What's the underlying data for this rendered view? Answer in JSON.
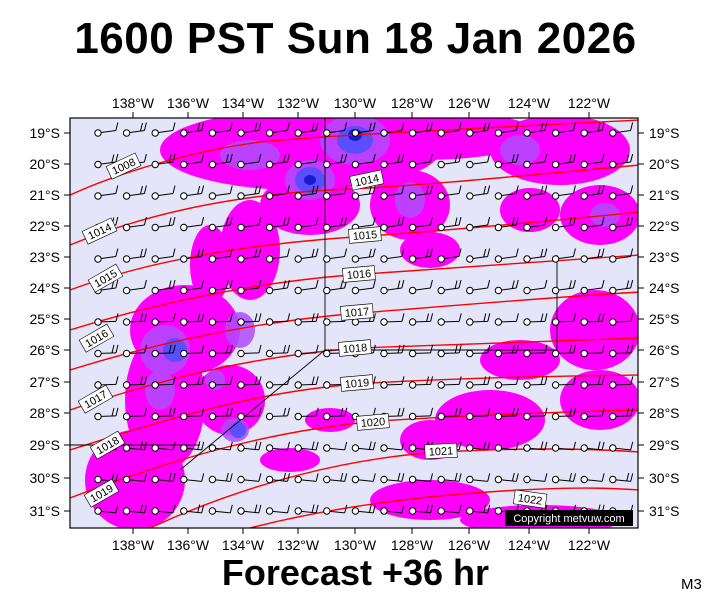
{
  "title": "1600 PST Sun 18 Jan 2026",
  "footer": "Forecast +36 hr",
  "model_tag": "M3",
  "copyright": "Copyright metvuw.com",
  "colors": {
    "background": "#e5e5fa",
    "rain_light": "#ff00ff",
    "rain_mid": "#b04cff",
    "rain_heavy": "#5050ff",
    "rain_core": "#1a1ad0",
    "isobar": "#ff0000"
  },
  "map": {
    "lon_labels": [
      "138°W",
      "136°W",
      "134°W",
      "132°W",
      "130°W",
      "128°W",
      "126°W",
      "124°W",
      "122°W"
    ],
    "lat_labels": [
      "19°S",
      "20°S",
      "21°S",
      "22°S",
      "23°S",
      "24°S",
      "25°S",
      "26°S",
      "27°S",
      "28°S",
      "29°S",
      "30°S",
      "31°S"
    ],
    "isobars": [
      {
        "label": "1008"
      },
      {
        "label": "1014"
      },
      {
        "label": "1014"
      },
      {
        "label": "1015"
      },
      {
        "label": "1015"
      },
      {
        "label": "1016"
      },
      {
        "label": "1016"
      },
      {
        "label": "1017"
      },
      {
        "label": "1017"
      },
      {
        "label": "1018"
      },
      {
        "label": "1018"
      },
      {
        "label": "1019"
      },
      {
        "label": "1019"
      },
      {
        "label": "1020"
      },
      {
        "label": "1021"
      },
      {
        "label": "1022"
      }
    ]
  }
}
